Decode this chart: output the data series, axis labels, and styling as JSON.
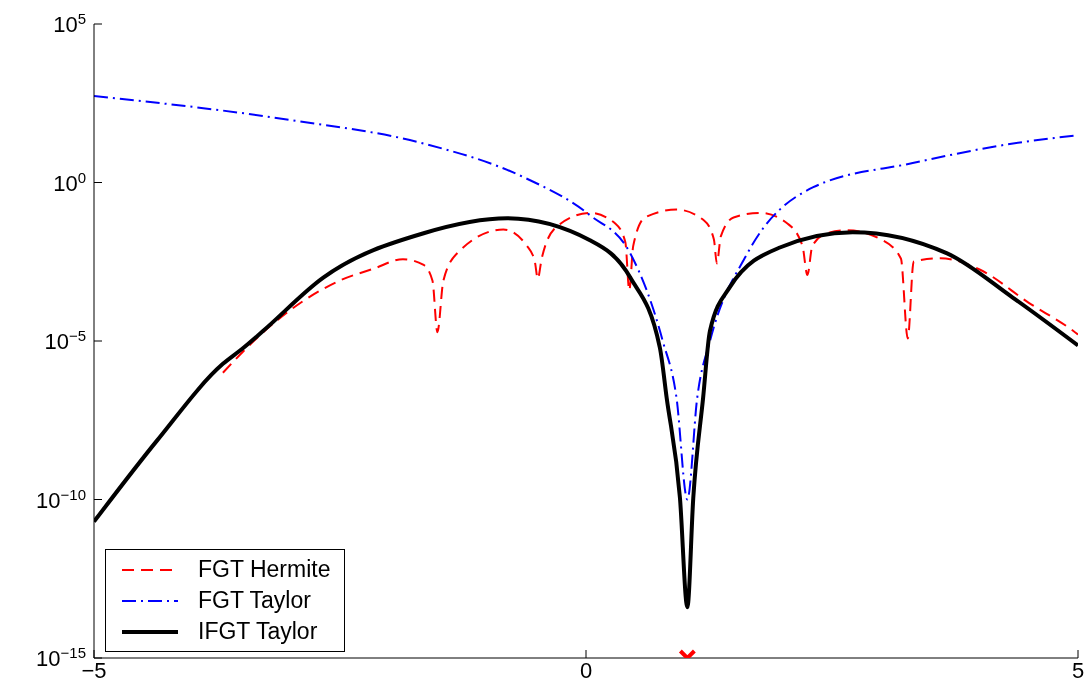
{
  "chart_data": {
    "type": "line",
    "log": "y",
    "grid": false,
    "legend": "bottom left",
    "xlim": [
      -5,
      5
    ],
    "xticks": [
      {
        "value": -5,
        "label": "−5"
      },
      0,
      5
    ],
    "ylim": [
      1e-15,
      100000
    ],
    "yticks": [
      {
        "value": 1e-15,
        "label": "10$^{−15}$"
      },
      {
        "value": 1e-10,
        "label": "10$^{−10}$"
      },
      {
        "value": 1e-05,
        "label": "10$^{−5}$"
      },
      {
        "value": 1,
        "label": "10$^{0}$"
      },
      {
        "value": 100000,
        "label": "10$^{5}$"
      }
    ],
    "series": [
      {
        "name": "FGT Hermite",
        "color": "#ff0000",
        "line_style": "dashed",
        "x": [
          -3.69,
          -3.28,
          -2.5,
          -2.16,
          -1.86,
          -1.65,
          -1.56,
          -1.51,
          -1.45,
          -1.3,
          -0.84,
          -0.6,
          -0.52,
          -0.49,
          -0.45,
          -0.3,
          0.04,
          0.3,
          0.4,
          0.44,
          0.48,
          0.6,
          0.92,
          1.2,
          1.3,
          1.33,
          1.37,
          1.5,
          1.77,
          2.05,
          2.2,
          2.25,
          2.3,
          2.45,
          2.65,
          3.0,
          3.2,
          3.27,
          3.33,
          3.6,
          4.0,
          4.5,
          4.95,
          5
        ],
        "values": [
          1e-06,
          1.9e-05,
          0.00081,
          0.0019,
          0.0038,
          0.0025,
          0.00079,
          1.9e-05,
          0.00079,
          0.0063,
          0.033,
          0.01,
          0.0032,
          0.00093,
          0.004,
          0.04,
          0.11,
          0.05,
          0.013,
          0.0004,
          0.01,
          0.079,
          0.14,
          0.063,
          0.016,
          0.0028,
          0.02,
          0.079,
          0.11,
          0.05,
          0.01,
          0.0012,
          0.01,
          0.025,
          0.031,
          0.016,
          0.004,
          1.2e-05,
          0.0032,
          0.0041,
          0.0018,
          0.00016,
          2.1e-05,
          1.6e-05
        ]
      },
      {
        "name": "FGT Taylor",
        "color": "#0000ff",
        "line_style": "dotted",
        "x": [
          -5,
          -3,
          -1.65,
          -0.64,
          0.04,
          0.45,
          0.78,
          0.92,
          1.03,
          1.13,
          1.26,
          1.64,
          2.31,
          3.32,
          4.34,
          5
        ],
        "values": [
          537,
          93,
          17,
          1.5,
          0.093,
          0.0058,
          1e-05,
          1.6e-07,
          1e-10,
          1.6e-07,
          1e-05,
          0.0058,
          0.71,
          4.1,
          17,
          31
        ]
      },
      {
        "name": "IFGT Taylor",
        "color": "#000000",
        "line_style": "solid",
        "x": [
          -5,
          -4.36,
          -3.69,
          -3.49,
          -3.28,
          -2.67,
          -1.65,
          -0.8,
          0.04,
          0.45,
          0.75,
          0.82,
          0.955,
          1.03,
          1.09,
          1.19,
          1.26,
          1.46,
          1.97,
          2.71,
          3.67,
          4.34,
          5
        ],
        "values": [
          2e-11,
          7.2e-09,
          1.9e-06,
          5.8e-06,
          2.1e-05,
          0.001,
          0.025,
          0.074,
          0.015,
          0.001,
          6.3e-06,
          1.6e-07,
          1.1e-10,
          4e-14,
          1.1e-10,
          1.6e-07,
          2.1e-05,
          0.00049,
          0.0089,
          0.027,
          0.0058,
          0.00023,
          7.2e-06
        ]
      },
      {
        "type": "scatter",
        "color": "#ff0000",
        "marker": "cross",
        "x": [
          1.03
        ],
        "values": [
          1e-15
        ]
      }
    ]
  }
}
